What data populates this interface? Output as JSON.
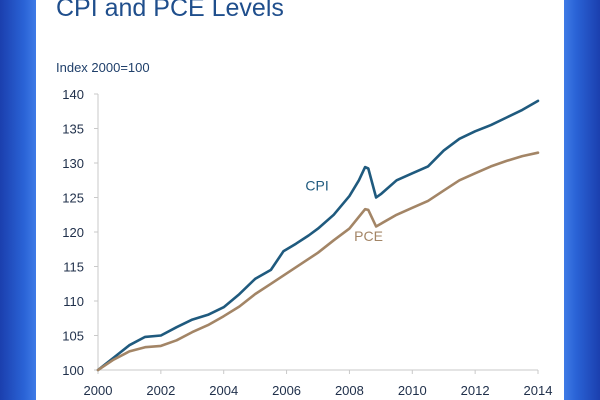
{
  "chart_data": {
    "type": "line",
    "title": "CPI and PCE Levels",
    "ylabel": "Index 2000=100",
    "xlabel": "",
    "xlim": [
      2000,
      2014
    ],
    "ylim": [
      100,
      140
    ],
    "x_ticks": [
      "2000",
      "2002",
      "2004",
      "2006",
      "2008",
      "2010",
      "2012",
      "2014"
    ],
    "y_ticks": [
      "100",
      "105",
      "110",
      "115",
      "120",
      "125",
      "130",
      "135",
      "140"
    ],
    "grid": false,
    "series": [
      {
        "name": "CPI",
        "color": "#1f5a7e",
        "x": [
          2000.0,
          2000.5,
          2001.0,
          2001.5,
          2002.0,
          2002.5,
          2003.0,
          2003.5,
          2004.0,
          2004.5,
          2005.0,
          2005.5,
          2005.9,
          2006.3,
          2006.7,
          2007.0,
          2007.5,
          2008.0,
          2008.3,
          2008.5,
          2008.6,
          2008.85,
          2009.0,
          2009.5,
          2010.0,
          2010.5,
          2011.0,
          2011.5,
          2012.0,
          2012.5,
          2013.0,
          2013.5,
          2014.0
        ],
        "values": [
          100.0,
          101.8,
          103.6,
          104.8,
          105.0,
          106.2,
          107.3,
          108.0,
          109.1,
          111.0,
          113.2,
          114.5,
          117.2,
          118.3,
          119.5,
          120.5,
          122.5,
          125.2,
          127.5,
          129.4,
          129.2,
          125.0,
          125.5,
          127.5,
          128.5,
          129.5,
          131.8,
          133.5,
          134.6,
          135.5,
          136.6,
          137.7,
          139.0
        ]
      },
      {
        "name": "PCE",
        "color": "#a38566",
        "x": [
          2000.0,
          2000.5,
          2001.0,
          2001.5,
          2002.0,
          2002.5,
          2003.0,
          2003.5,
          2004.0,
          2004.5,
          2005.0,
          2005.5,
          2006.0,
          2006.5,
          2007.0,
          2007.5,
          2008.0,
          2008.3,
          2008.5,
          2008.6,
          2008.85,
          2009.0,
          2009.5,
          2010.0,
          2010.5,
          2011.0,
          2011.5,
          2012.0,
          2012.5,
          2013.0,
          2013.5,
          2014.0
        ],
        "values": [
          100.0,
          101.5,
          102.7,
          103.3,
          103.5,
          104.3,
          105.5,
          106.5,
          107.8,
          109.2,
          111.0,
          112.5,
          114.0,
          115.5,
          117.0,
          118.8,
          120.5,
          122.2,
          123.3,
          123.2,
          120.8,
          121.2,
          122.5,
          123.5,
          124.5,
          126.0,
          127.5,
          128.5,
          129.5,
          130.3,
          131.0,
          131.5
        ]
      }
    ]
  }
}
